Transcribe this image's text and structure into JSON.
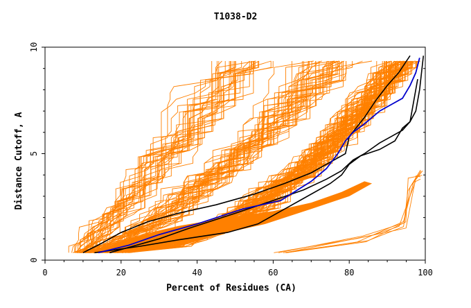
{
  "chart_data": {
    "type": "line",
    "title": "T1038-D2",
    "xlabel": "Percent of Residues (CA)",
    "ylabel": "Distance Cutoff, A",
    "xlim": [
      0,
      100
    ],
    "ylim": [
      0,
      10
    ],
    "x_ticks": [
      0,
      20,
      40,
      60,
      80,
      100
    ],
    "y_ticks": [
      0,
      5,
      10
    ],
    "x_tick_labels": [
      "0",
      "20",
      "40",
      "60",
      "80",
      "100"
    ],
    "y_tick_labels": [
      "0",
      "5",
      "10"
    ],
    "grid": false,
    "legend": "none",
    "colors": {
      "bundle": "#ff8000",
      "highlight_black": "#000000",
      "highlight_blue": "#0000cc"
    },
    "bundle_count": 150,
    "highlighted_series": [
      {
        "color": "#000000",
        "x": [
          10,
          15,
          20,
          27,
          35,
          45,
          55,
          63,
          70,
          74,
          79,
          80,
          84,
          87,
          90,
          93,
          96
        ],
        "y": [
          0.35,
          0.8,
          1.3,
          1.8,
          2.2,
          2.6,
          3.1,
          3.6,
          4.1,
          4.5,
          5.0,
          5.8,
          6.7,
          7.5,
          8.2,
          8.8,
          9.6
        ]
      },
      {
        "color": "#000000",
        "x": [
          13,
          25,
          35,
          48,
          56,
          63,
          68,
          75,
          78,
          80,
          83,
          88,
          92,
          94,
          96,
          97,
          98
        ],
        "y": [
          0.35,
          0.65,
          0.95,
          1.3,
          1.7,
          2.4,
          2.9,
          3.6,
          4.0,
          4.5,
          4.9,
          5.2,
          5.6,
          6.2,
          6.5,
          7.5,
          8.5
        ]
      },
      {
        "color": "#000000",
        "x": [
          17,
          30,
          38,
          50,
          60,
          68,
          74,
          78,
          81,
          84,
          88,
          91,
          94,
          96,
          97.5,
          98.5,
          99.5
        ],
        "y": [
          0.35,
          1.0,
          1.5,
          2.2,
          2.8,
          3.3,
          3.8,
          4.2,
          4.7,
          5.0,
          5.5,
          5.8,
          6.1,
          6.5,
          7.0,
          8.0,
          9.6
        ]
      },
      {
        "color": "#0000cc",
        "x": [
          14,
          22,
          30,
          40,
          52,
          62,
          70,
          74,
          77,
          79,
          81,
          84,
          88,
          91,
          94,
          96,
          97.5,
          98.5
        ],
        "y": [
          0.35,
          0.7,
          1.2,
          1.7,
          2.4,
          2.8,
          3.7,
          4.3,
          5.0,
          5.6,
          6.0,
          6.4,
          7.0,
          7.3,
          7.6,
          8.2,
          8.8,
          9.5
        ]
      }
    ]
  }
}
